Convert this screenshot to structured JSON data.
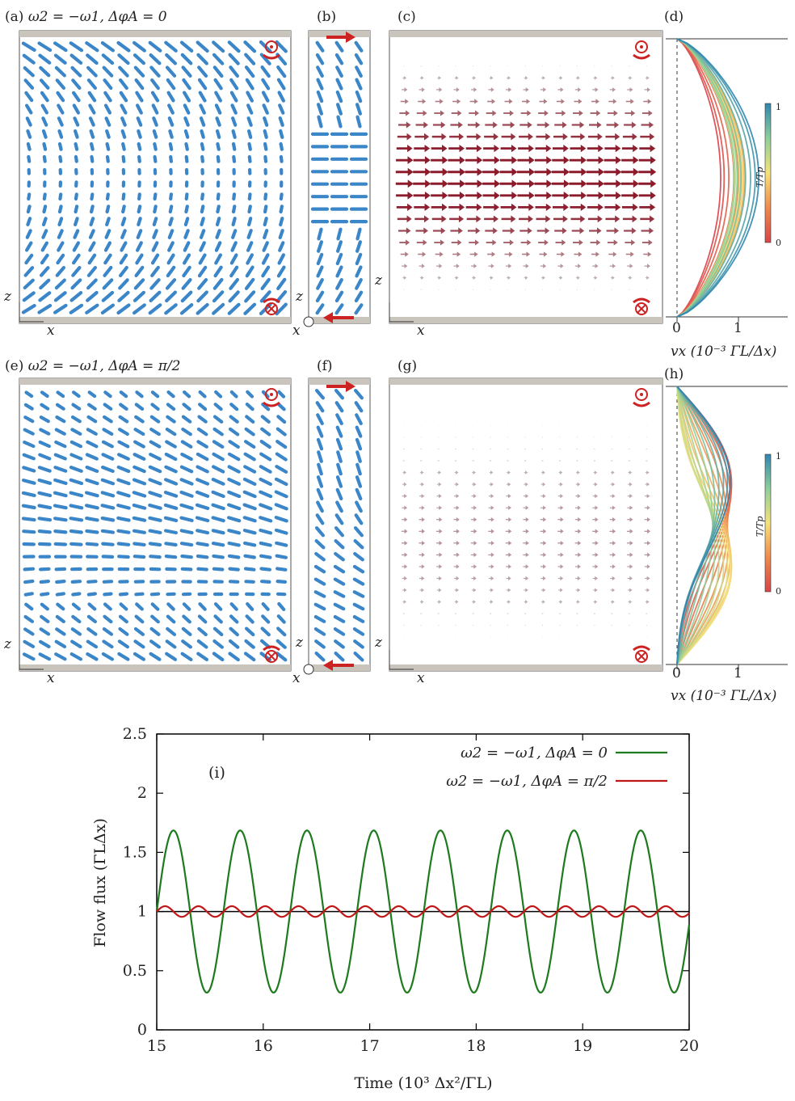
{
  "figure": {
    "panels_top": {
      "a": {
        "label": "(a)",
        "title": "ω2 = −ω1, ΔφA = 0"
      },
      "b": {
        "label": "(b)"
      },
      "c": {
        "label": "(c)"
      },
      "d": {
        "label": "(d)"
      }
    },
    "panels_bottom": {
      "e": {
        "label": "(e)",
        "title": "ω2 = −ω1, ΔφA = π/2"
      },
      "f": {
        "label": "(f)"
      },
      "g": {
        "label": "(g)"
      },
      "h": {
        "label": "(h)"
      }
    },
    "axes": {
      "z": "z",
      "x": "x"
    },
    "profile_axis": {
      "xlabel": "vx (10⁻³ ΓL/Δx)",
      "ticks": [
        "0",
        "1"
      ],
      "colorbar_label": "T/Tp",
      "colorbar_ticks": [
        "0",
        "1"
      ]
    },
    "colors": {
      "director": "#3a86c8",
      "flow_strong": "#8c1c2c",
      "wall": "#c9c5bd",
      "rotation": "#cc2222"
    }
  },
  "chart_data": {
    "type": "line",
    "label": "(i)",
    "xlabel": "Time (10³ Δx²/ΓL)",
    "ylabel": "Flow flux (ΓLΔx)",
    "xlim": [
      15,
      20
    ],
    "ylim": [
      0,
      2.5
    ],
    "xticks": [
      "15",
      "16",
      "17",
      "18",
      "19",
      "20"
    ],
    "yticks": [
      "0",
      "0.5",
      "1",
      "1.5",
      "2",
      "2.5"
    ],
    "reference_line": 1,
    "legend_position": "top-right",
    "series": [
      {
        "name": "ω2 = −ω1, ΔφA = 0",
        "color": "#1e7a1e",
        "mean": 1.0,
        "amplitude": 0.685,
        "period": 0.627,
        "phase_start": 15.0
      },
      {
        "name": "ω2 = −ω1, ΔφA = π/2",
        "color": "#c01818",
        "mean": 1.0,
        "amplitude": 0.045,
        "period": 0.3135,
        "phase_start": 15.0
      }
    ]
  }
}
